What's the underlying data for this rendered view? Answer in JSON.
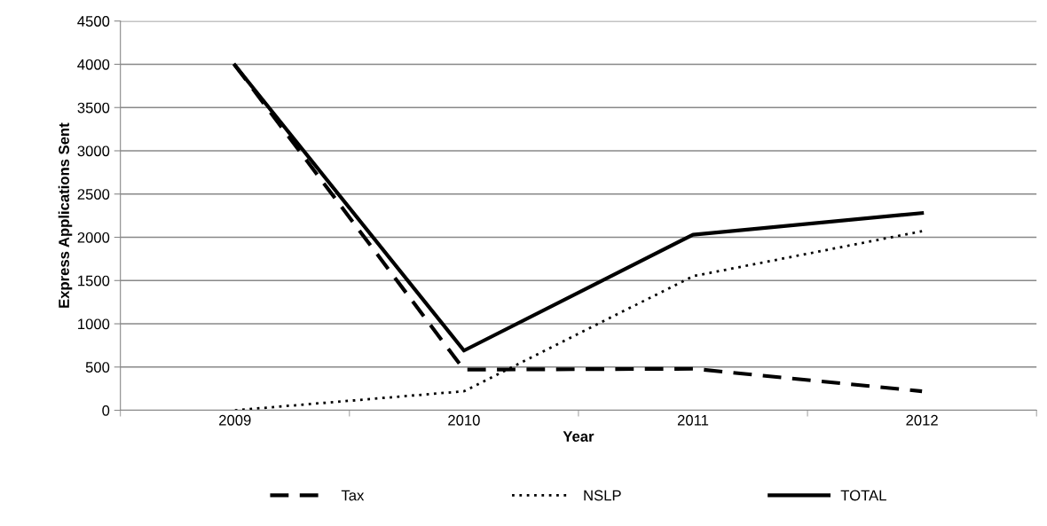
{
  "chart_data": {
    "type": "line",
    "xlabel": "Year",
    "ylabel": "Express Applications Sent",
    "categories": [
      "2009",
      "2010",
      "2011",
      "2012"
    ],
    "series": [
      {
        "name": "Tax",
        "color": "#000000",
        "line_style": "dashed",
        "values": [
          3990,
          470,
          480,
          220
        ]
      },
      {
        "name": "NSLP",
        "color": "#000000",
        "line_style": "dotted",
        "values": [
          0,
          220,
          1550,
          2070
        ]
      },
      {
        "name": "TOTAL",
        "color": "#000000",
        "line_style": "solid",
        "values": [
          3990,
          690,
          2030,
          2280
        ]
      }
    ],
    "ylim": [
      0,
      4500
    ],
    "yticks": [
      0,
      500,
      1000,
      1500,
      2000,
      2500,
      3000,
      3500,
      4000,
      4500
    ],
    "grid": "y",
    "legend": "bottom",
    "marker": "none"
  }
}
